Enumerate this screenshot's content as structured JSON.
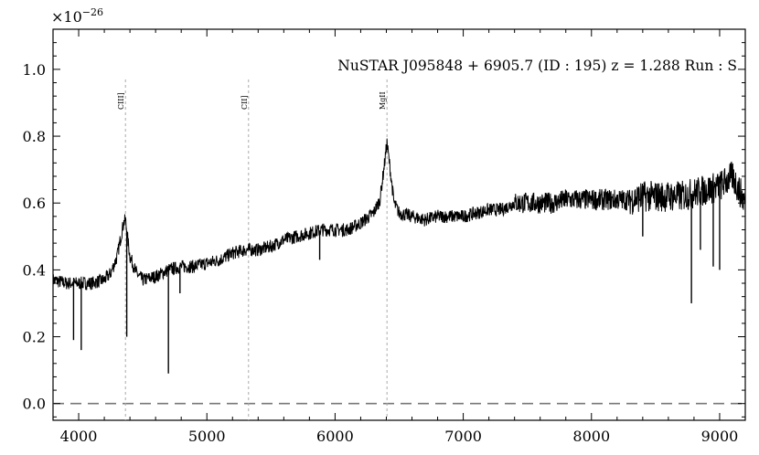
{
  "chart_data": {
    "type": "line",
    "title": "NuSTAR J095848 + 6905.7 (ID : 195)   z = 1.288   Run : S",
    "xlabel": "",
    "ylabel": "",
    "y_multiplier": "×10",
    "y_multiplier_exponent": "−26",
    "xlim": [
      3800,
      9200
    ],
    "ylim": [
      -0.05,
      1.12
    ],
    "xticks": [
      4000,
      5000,
      6000,
      7000,
      8000,
      9000
    ],
    "xtick_labels": [
      "4000",
      "5000",
      "6000",
      "7000",
      "8000",
      "9000"
    ],
    "yticks": [
      0.0,
      0.2,
      0.4,
      0.6,
      0.8,
      1.0
    ],
    "ytick_labels": [
      "0.0",
      "0.2",
      "0.4",
      "0.6",
      "0.8",
      "1.0"
    ],
    "zero_line": 0.0,
    "emission_lines": [
      {
        "label": "CIII]",
        "x": 4365
      },
      {
        "label": "CII]",
        "x": 5325
      },
      {
        "label": "MgII",
        "x": 6405
      }
    ],
    "series": [
      {
        "color": "#000000",
        "x": [
          3800,
          3900,
          4000,
          4100,
          4200,
          4250,
          4300,
          4330,
          4350,
          4365,
          4380,
          4400,
          4450,
          4500,
          4600,
          4700,
          4800,
          4900,
          5000,
          5100,
          5200,
          5300,
          5400,
          5500,
          5600,
          5700,
          5800,
          5900,
          6000,
          6100,
          6200,
          6300,
          6350,
          6380,
          6405,
          6430,
          6460,
          6500,
          6600,
          6700,
          6800,
          6900,
          7000,
          7100,
          7200,
          7300,
          7400,
          7500,
          7600,
          7700,
          7800,
          7900,
          8000,
          8100,
          8200,
          8300,
          8400,
          8500,
          8600,
          8700,
          8800,
          8900,
          9000,
          9100,
          9200
        ],
        "values": [
          0.37,
          0.36,
          0.36,
          0.36,
          0.37,
          0.39,
          0.44,
          0.5,
          0.54,
          0.55,
          0.5,
          0.44,
          0.39,
          0.37,
          0.38,
          0.4,
          0.41,
          0.41,
          0.42,
          0.43,
          0.45,
          0.46,
          0.46,
          0.47,
          0.49,
          0.5,
          0.51,
          0.52,
          0.52,
          0.52,
          0.54,
          0.57,
          0.61,
          0.7,
          0.78,
          0.7,
          0.6,
          0.57,
          0.56,
          0.55,
          0.56,
          0.56,
          0.56,
          0.57,
          0.58,
          0.58,
          0.6,
          0.6,
          0.6,
          0.6,
          0.61,
          0.61,
          0.61,
          0.61,
          0.61,
          0.61,
          0.62,
          0.62,
          0.62,
          0.62,
          0.63,
          0.64,
          0.65,
          0.68,
          0.6
        ]
      }
    ],
    "absorption_dips": [
      {
        "x": 3960,
        "y": 0.19
      },
      {
        "x": 4020,
        "y": 0.16
      },
      {
        "x": 4375,
        "y": 0.2
      },
      {
        "x": 4700,
        "y": 0.09
      },
      {
        "x": 4790,
        "y": 0.33
      },
      {
        "x": 5880,
        "y": 0.43
      },
      {
        "x": 8400,
        "y": 0.5
      },
      {
        "x": 8780,
        "y": 0.3
      },
      {
        "x": 8850,
        "y": 0.46
      },
      {
        "x": 8950,
        "y": 0.41
      },
      {
        "x": 9000,
        "y": 0.4
      }
    ]
  }
}
